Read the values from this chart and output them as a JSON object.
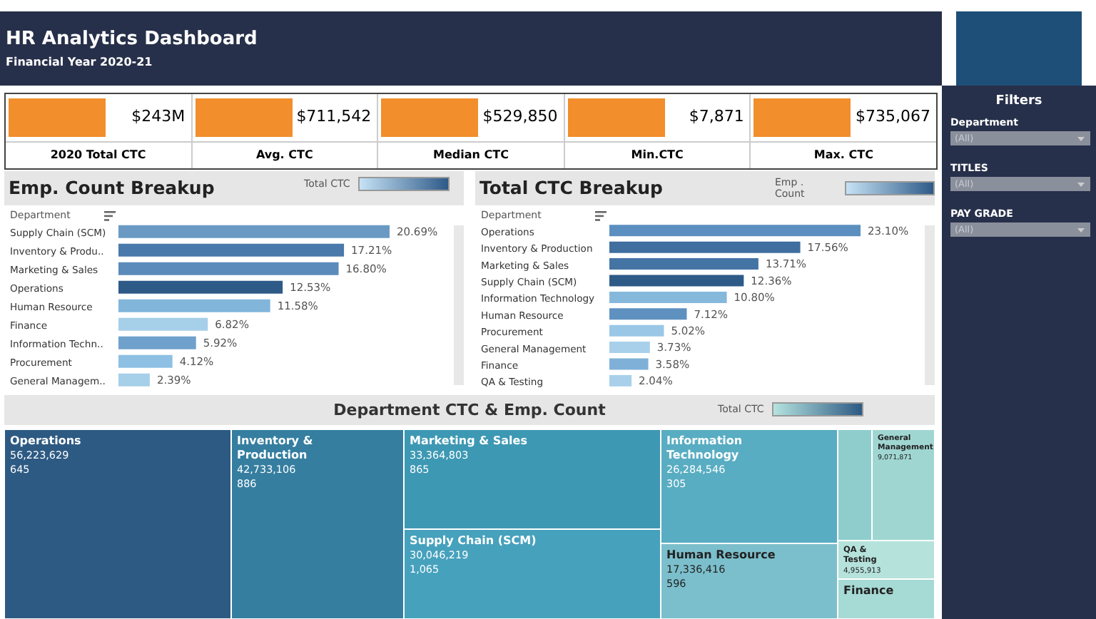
{
  "chart_data": [
    {
      "type": "other",
      "title": "HR Analytics Dashboard",
      "subtitle": "Financial Year 2020-21",
      "categories": [
        "2020 Total CTC",
        "Avg. CTC",
        "Median CTC",
        "Min.CTC",
        "Max. CTC"
      ],
      "values": [
        243000000,
        711542,
        529850,
        7871,
        735067
      ],
      "value_labels": [
        "$243M",
        "$711,542",
        "$529,850",
        "$7,871",
        "$735,067"
      ]
    },
    {
      "type": "bar",
      "orientation": "horizontal",
      "title": "Emp. Count Breakup",
      "ylabel": "Department",
      "clabel": "Total CTC",
      "tick_labels": "y",
      "categories": [
        "Supply Chain (SCM)",
        "Inventory & Produ..",
        "Marketing & Sales",
        "Operations",
        "Human Resource",
        "Finance",
        "Information Techn..",
        "Procurement",
        "General Managem.."
      ],
      "values": [
        20.69,
        17.21,
        16.8,
        12.53,
        11.58,
        6.82,
        5.92,
        4.12,
        2.39
      ],
      "value_labels": [
        "20.69%",
        "17.21%",
        "16.80%",
        "12.53%",
        "11.58%",
        "6.82%",
        "5.92%",
        "4.12%",
        "2.39%"
      ],
      "colors": [
        "#6a9ac4",
        "#4a7aab",
        "#5b8bbb",
        "#2e5a88",
        "#82b5da",
        "#a6cfe9",
        "#6fa1cc",
        "#8dc0e3",
        "#a6cfe9"
      ]
    },
    {
      "type": "bar",
      "orientation": "horizontal",
      "title": "Total CTC Breakup",
      "ylabel": "Department",
      "clabel": "Emp . Count",
      "tick_labels": "y",
      "categories": [
        "Operations",
        "Inventory & Production",
        "Marketing & Sales",
        "Supply Chain (SCM)",
        "Information Technology",
        "Human Resource",
        "Procurement",
        "General Management",
        "Finance",
        "QA & Testing"
      ],
      "values": [
        23.1,
        17.56,
        13.71,
        12.36,
        10.8,
        7.12,
        5.02,
        3.73,
        3.58,
        2.04
      ],
      "value_labels": [
        "23.10%",
        "17.56%",
        "13.71%",
        "12.36%",
        "10.80%",
        "7.12%",
        "5.02%",
        "3.73%",
        "3.58%",
        "2.04%"
      ],
      "colors": [
        "#5b8fbf",
        "#3f6e9f",
        "#4474a4",
        "#2e5a88",
        "#86b8dc",
        "#5e91c0",
        "#9ac7e6",
        "#a8d0ea",
        "#7fb1d8",
        "#a8d0ea"
      ]
    },
    {
      "type": "other",
      "title": "Department CTC & Emp. Count",
      "clabel": "Total CTC",
      "categories": [
        "Operations",
        "Inventory & Production",
        "Marketing & Sales",
        "Supply Chain (SCM)",
        "Information Technology",
        "Human Resource",
        null,
        "General Management",
        "QA & Testing",
        "Finance"
      ],
      "series": [
        {
          "colors": [
            "#2d5a83",
            "#357ea0",
            "#3d98b3",
            "#46a1bc",
            "#58adc2",
            "#7bbfcc",
            "#8fcdcd",
            "#a0d6d2",
            "#b6e2dc",
            "#a6dad4"
          ],
          "values": [
            56223629,
            42733106,
            33364803,
            30046219,
            26284546,
            17336416,
            null,
            9071871,
            4955913,
            null
          ],
          "value_labels": [
            "56,223,629",
            "42,733,106",
            "33,364,803",
            "30,046,219",
            "26,284,546",
            "17,336,416",
            null,
            "9,071,871",
            "4,955,913",
            null
          ]
        },
        {
          "values": [
            645,
            886,
            865,
            1065,
            305,
            596,
            null,
            null,
            null,
            null
          ],
          "value_labels": [
            "645",
            "886",
            "865",
            "1,065",
            "305",
            "596",
            null,
            null,
            null,
            null
          ]
        }
      ]
    },
    {
      "type": "other",
      "title": "Filters",
      "categories": [
        "Department",
        "TITLES",
        "PAY GRADE"
      ],
      "annotations": [
        "(All)",
        "(All)",
        "(All)"
      ]
    }
  ]
}
